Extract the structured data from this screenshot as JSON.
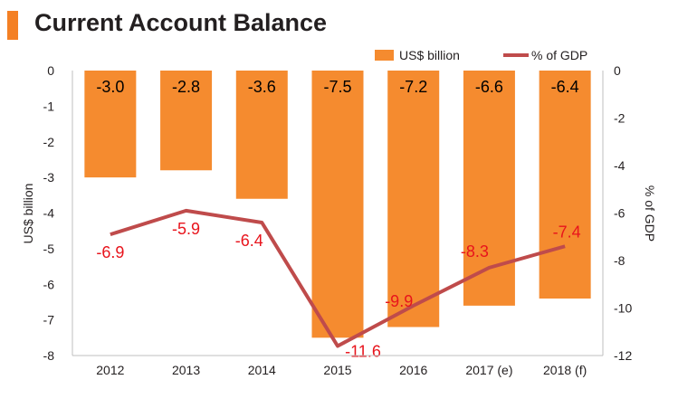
{
  "header": {
    "title": "Current Account Balance"
  },
  "colors": {
    "accent": "#f48024",
    "bar": "#f58b2f",
    "line": "#bf4b4b",
    "line_label": "#e8141c"
  },
  "chart_data": {
    "type": "bar",
    "categories": [
      "2012",
      "2013",
      "2014",
      "2015",
      "2016",
      "2017 (e)",
      "2018 (f)"
    ],
    "series": [
      {
        "name": "US$ billion",
        "type": "bar",
        "axis": "left",
        "values": [
          -3.0,
          -2.8,
          -3.6,
          -7.5,
          -7.2,
          -6.6,
          -6.4
        ],
        "labels": [
          "-3.0",
          "-2.8",
          "-3.6",
          "-7.5",
          "-7.2",
          "-6.6",
          "-6.4"
        ]
      },
      {
        "name": "% of GDP",
        "type": "line",
        "axis": "right",
        "values": [
          -6.9,
          -5.9,
          -6.4,
          -11.6,
          -9.9,
          -8.3,
          -7.4
        ],
        "labels": [
          "-6.9",
          "-5.9",
          "-6.4",
          "-11.6",
          "-9.9",
          "-8.3",
          "-7.4"
        ]
      }
    ],
    "ylabel": "US$ billion",
    "y2label": "% of GDP",
    "ylim": [
      -8,
      0
    ],
    "y2lim": [
      -12,
      0
    ],
    "yticks": [
      "0",
      "-1",
      "-2",
      "-3",
      "-4",
      "-5",
      "-6",
      "-7",
      "-8"
    ],
    "y2ticks": [
      "0",
      "-2",
      "-4",
      "-6",
      "-8",
      "-10",
      "-12"
    ],
    "grid": false,
    "legend": "top-right"
  }
}
